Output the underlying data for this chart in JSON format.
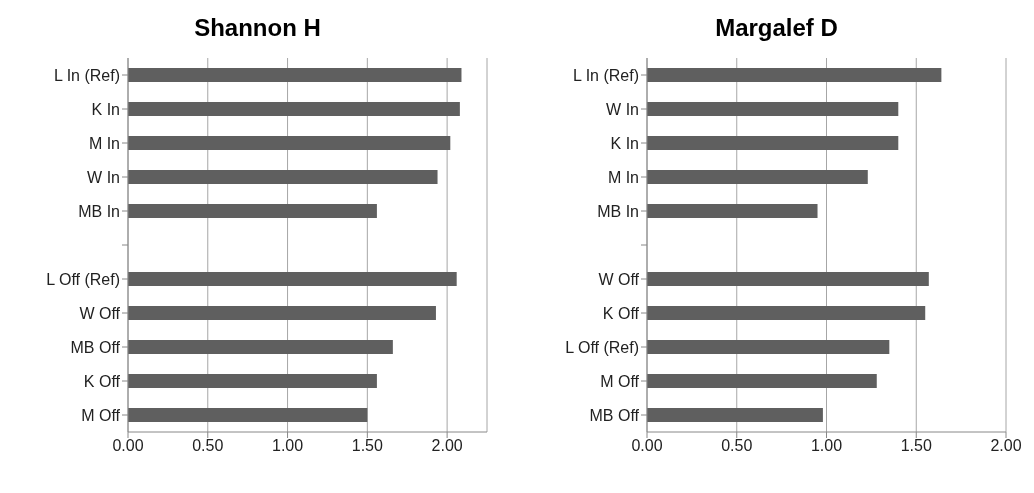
{
  "chart_data": [
    {
      "type": "bar",
      "orientation": "horizontal",
      "title": "Shannon H",
      "categories": [
        "L In (Ref)",
        "K In",
        "M In",
        "W In",
        "MB In",
        null,
        "L Off (Ref)",
        "W Off",
        "MB Off",
        "K Off",
        "M Off"
      ],
      "values": [
        2.09,
        2.08,
        2.02,
        1.94,
        1.56,
        null,
        2.06,
        1.93,
        1.66,
        1.56,
        1.5
      ],
      "color": "#5f5f5f",
      "xlim": [
        0,
        2.25
      ],
      "xticks": [
        {
          "value": 0,
          "label": "0.00"
        },
        {
          "value": 0.5,
          "label": "0.50"
        },
        {
          "value": 1,
          "label": "1.00"
        },
        {
          "value": 1.5,
          "label": "1.50"
        },
        {
          "value": 2,
          "label": "2.00"
        }
      ],
      "grid": "x"
    },
    {
      "type": "bar",
      "orientation": "horizontal",
      "title": "Margalef D",
      "categories": [
        "L In (Ref)",
        "W In",
        "K In",
        "M In",
        "MB In",
        null,
        "W Off",
        "K Off",
        "L Off (Ref)",
        "M Off",
        "MB Off"
      ],
      "values": [
        1.64,
        1.4,
        1.4,
        1.23,
        0.95,
        null,
        1.57,
        1.55,
        1.35,
        1.28,
        0.98
      ],
      "color": "#5f5f5f",
      "xlim": [
        0,
        2
      ],
      "xticks": [
        {
          "value": 0,
          "label": "0.00"
        },
        {
          "value": 0.5,
          "label": "0.50"
        },
        {
          "value": 1,
          "label": "1.00"
        },
        {
          "value": 1.5,
          "label": "1.50"
        },
        {
          "value": 2,
          "label": "2.00"
        }
      ],
      "grid": "x"
    }
  ]
}
